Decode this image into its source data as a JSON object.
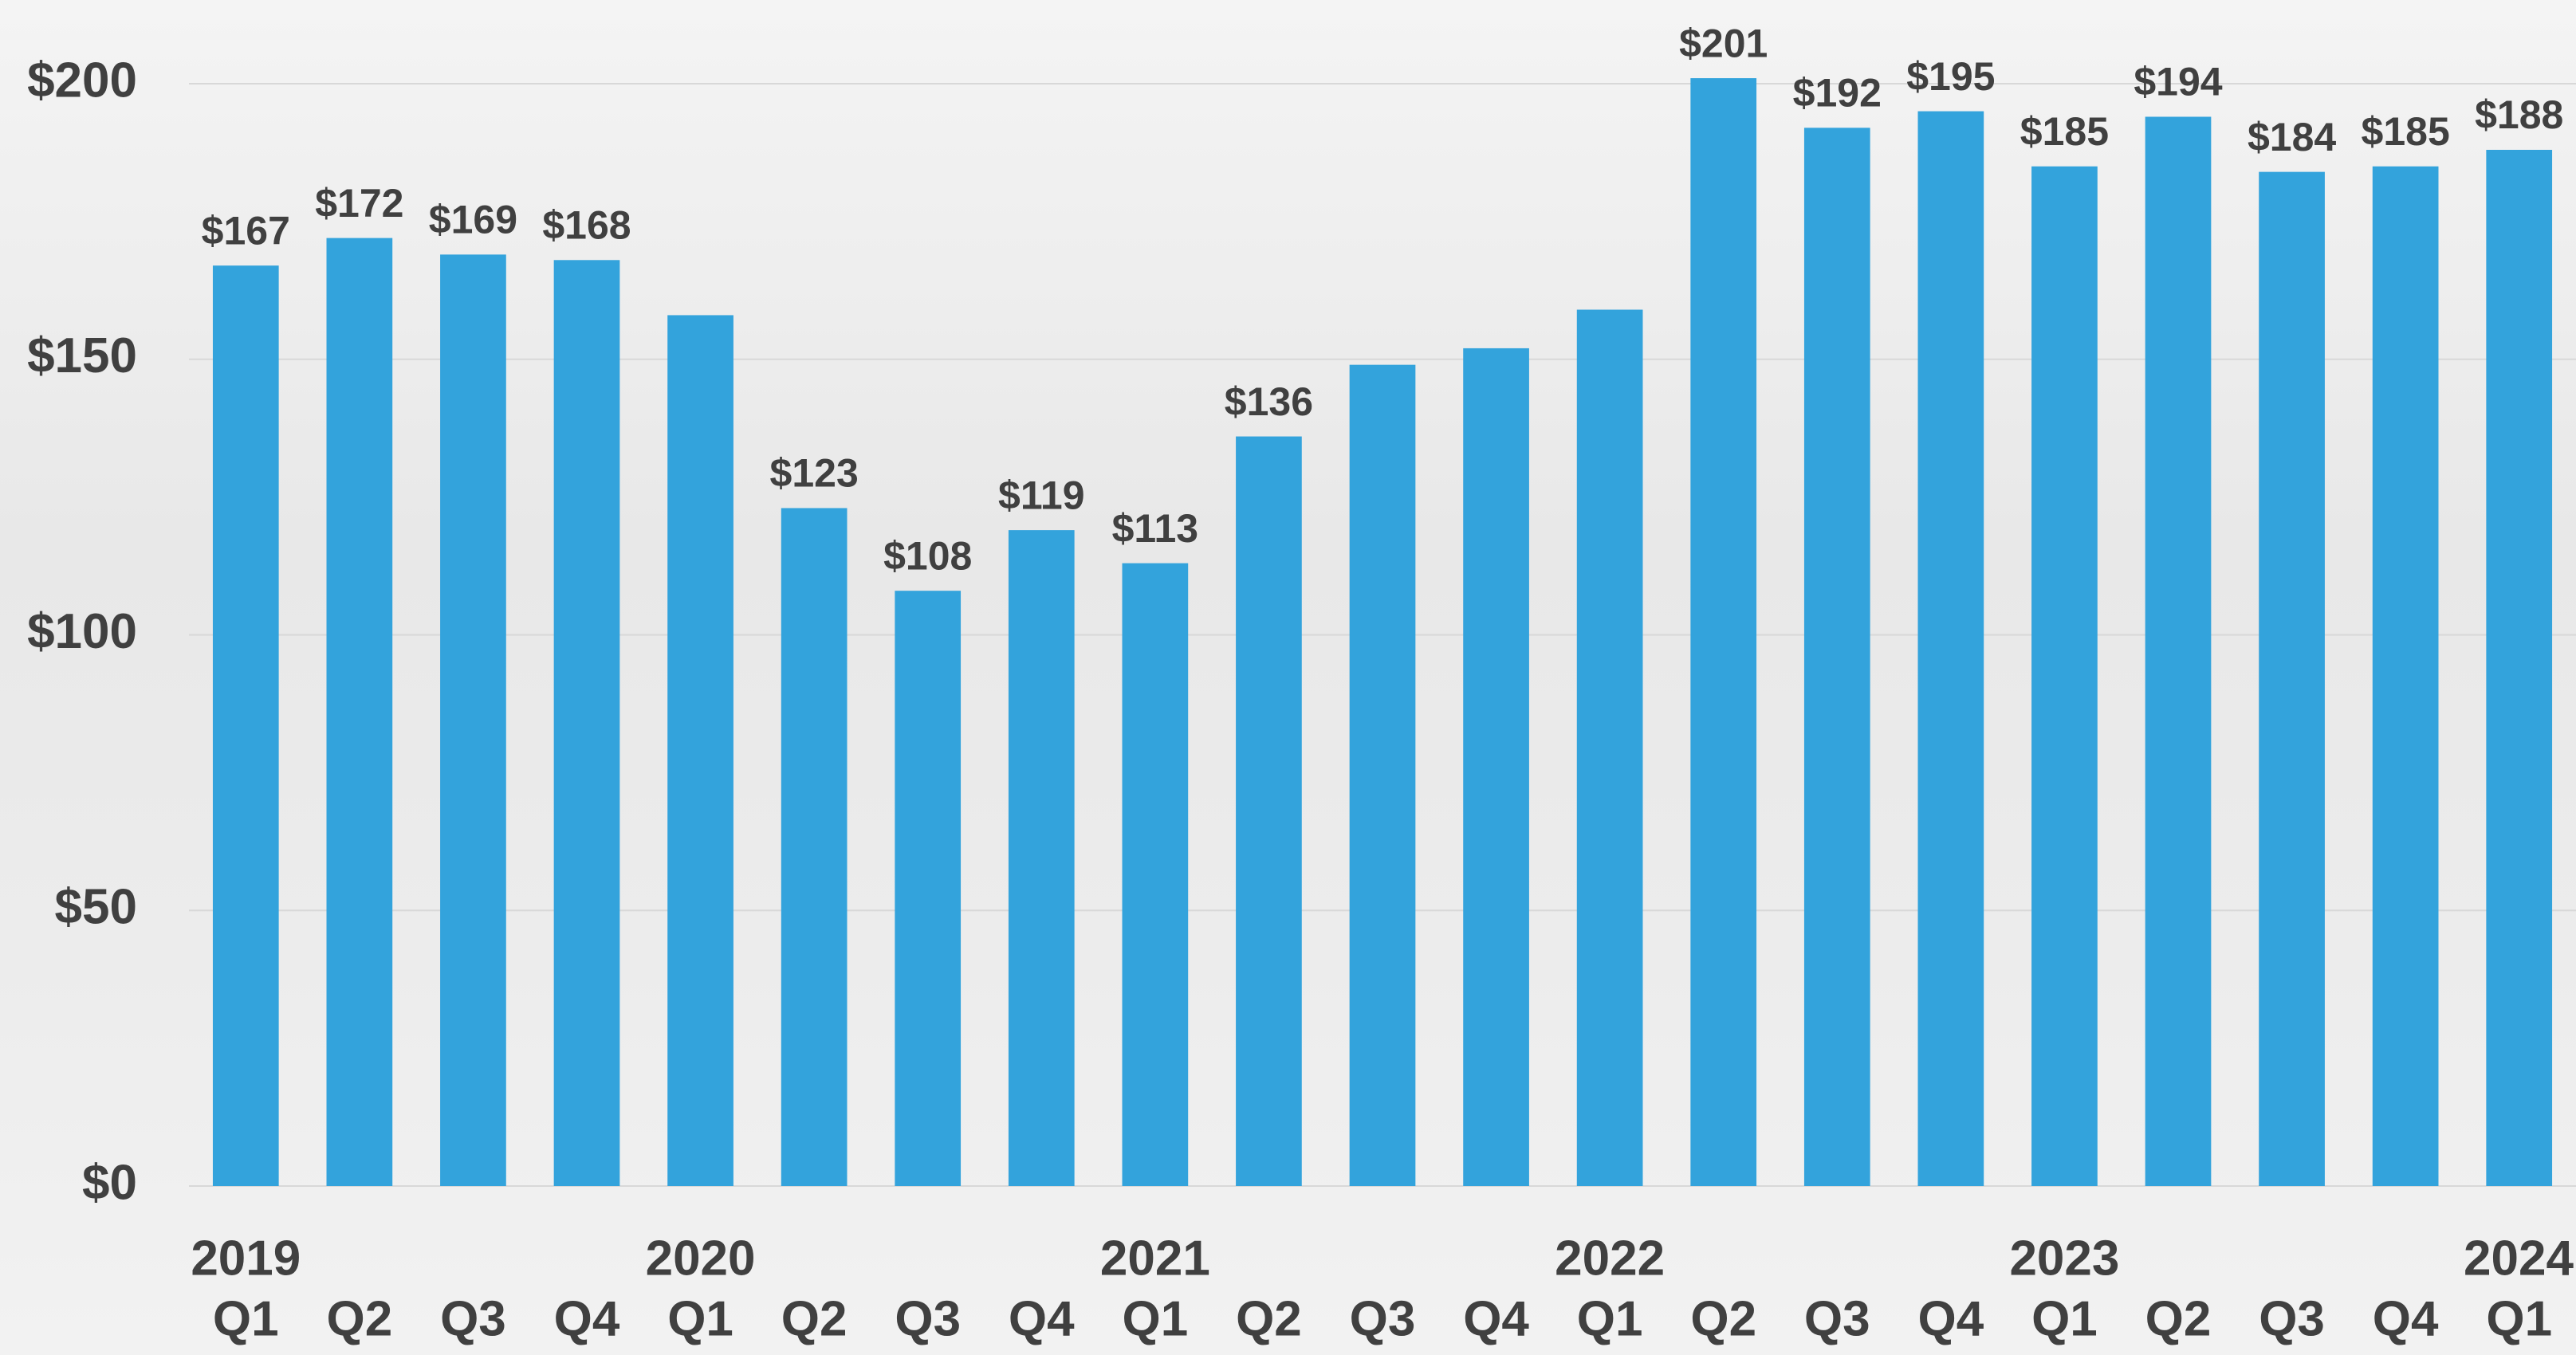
{
  "chart_data": {
    "type": "bar",
    "categories": [
      "Q1",
      "Q2",
      "Q3",
      "Q4",
      "Q1",
      "Q2",
      "Q3",
      "Q4",
      "Q1",
      "Q2",
      "Q3",
      "Q4",
      "Q1",
      "Q2",
      "Q3",
      "Q4",
      "Q1",
      "Q2",
      "Q3",
      "Q4",
      "Q1"
    ],
    "years": [
      "2019",
      null,
      null,
      null,
      "2020",
      null,
      null,
      null,
      "2021",
      null,
      null,
      null,
      "2022",
      null,
      null,
      null,
      "2023",
      null,
      null,
      null,
      "2024"
    ],
    "values": [
      167,
      172,
      169,
      168,
      158,
      123,
      108,
      119,
      113,
      136,
      149,
      152,
      159,
      201,
      192,
      195,
      185,
      194,
      184,
      185,
      188
    ],
    "value_labels": [
      "$167",
      "$172",
      "$169",
      "$168",
      null,
      "$123",
      "$108",
      "$119",
      "$113",
      "$136",
      null,
      null,
      null,
      "$201",
      "$192",
      "$195",
      "$185",
      "$194",
      "$184",
      "$185",
      "$188"
    ],
    "color": "#33a3dc",
    "ylim": [
      0,
      200
    ],
    "yticks": [
      {
        "value": 0,
        "label": "$0"
      },
      {
        "value": 50,
        "label": "$50"
      },
      {
        "value": 100,
        "label": "$100"
      },
      {
        "value": 150,
        "label": "$150"
      },
      {
        "value": 200,
        "label": "$200"
      }
    ],
    "grid": true
  }
}
